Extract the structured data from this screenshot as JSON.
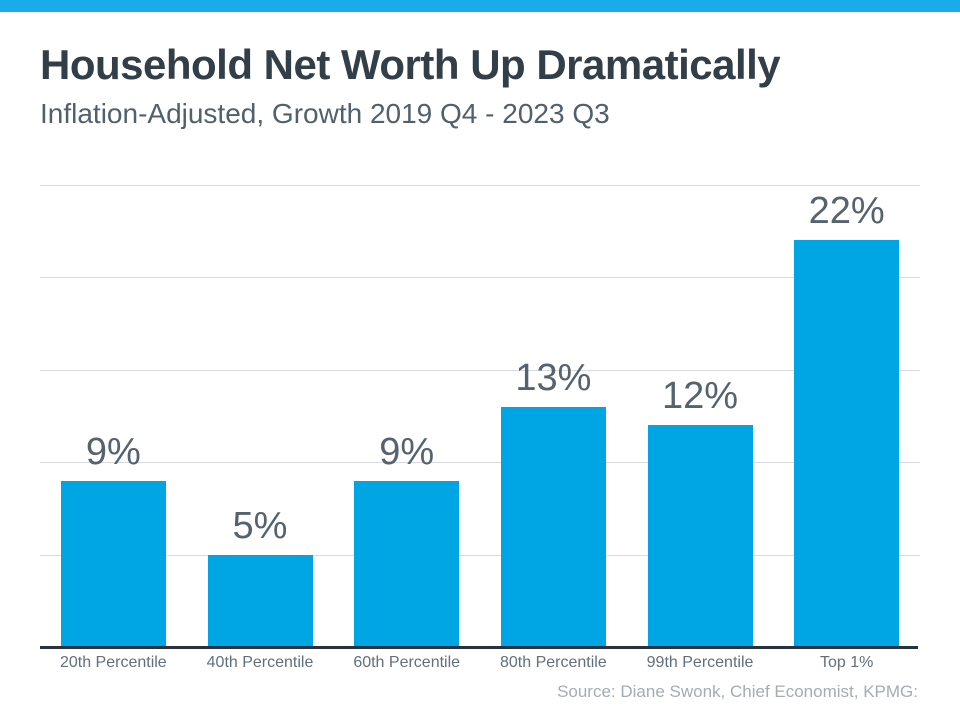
{
  "header": {
    "title": "Household Net Worth Up Dramatically",
    "subtitle": "Inflation-Adjusted, Growth 2019 Q4 - 2023 Q3"
  },
  "colors": {
    "top_accent_bar": "#1aabe9",
    "bar_fill": "#00a6e4",
    "gridline": "#d8dbdd",
    "axis_line": "#29323c",
    "title_text": "#323e48",
    "subtitle_text": "#51606a",
    "value_label_text": "#56636e",
    "category_text": "#61707c",
    "source_text": "#a4acb4"
  },
  "chart_data": {
    "type": "bar",
    "title": "Household Net Worth Up Dramatically",
    "subtitle": "Inflation-Adjusted, Growth 2019 Q4 - 2023 Q3",
    "categories": [
      "20th Percentile",
      "40th Percentile",
      "60th Percentile",
      "80th Percentile",
      "99th Percentile",
      "Top 1%"
    ],
    "values": [
      9,
      5,
      9,
      13,
      12,
      22
    ],
    "value_labels": [
      "9%",
      "5%",
      "9%",
      "13%",
      "12%",
      "22%"
    ],
    "xlabel": "",
    "ylabel": "",
    "ylim": [
      0,
      25
    ],
    "gridline_step": 5,
    "grid": true,
    "legend": false,
    "y_tick_labels_shown": false
  },
  "footer": {
    "source": "Source: Diane Swonk, Chief Economist, KPMG:"
  }
}
